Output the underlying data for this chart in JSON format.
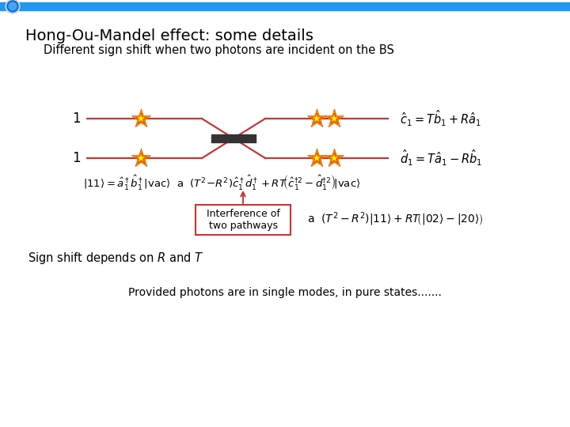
{
  "title": "Hong-Ou-Mandel effect: some details",
  "subtitle": "Different sign shift when two photons are incident on the BS",
  "bg_color": "#ffffff",
  "header_bar_color": "#2196F3",
  "line_color": "#cc3333",
  "bs_color": "#333333",
  "annotation_box_color": "#cc3333",
  "annotation_text": "Interference of\ntwo pathways",
  "sign_shift_text": "Sign shift depends on $R$ and $T$",
  "footer_text": "Provided photons are in single modes, in pure states.......",
  "eq1_label": "$\\hat{c}_1 = T\\hat{b}_1 + R\\hat{a}_1$",
  "eq2_label": "$\\hat{d}_1 = T\\hat{a}_1 - R\\hat{b}_1$"
}
